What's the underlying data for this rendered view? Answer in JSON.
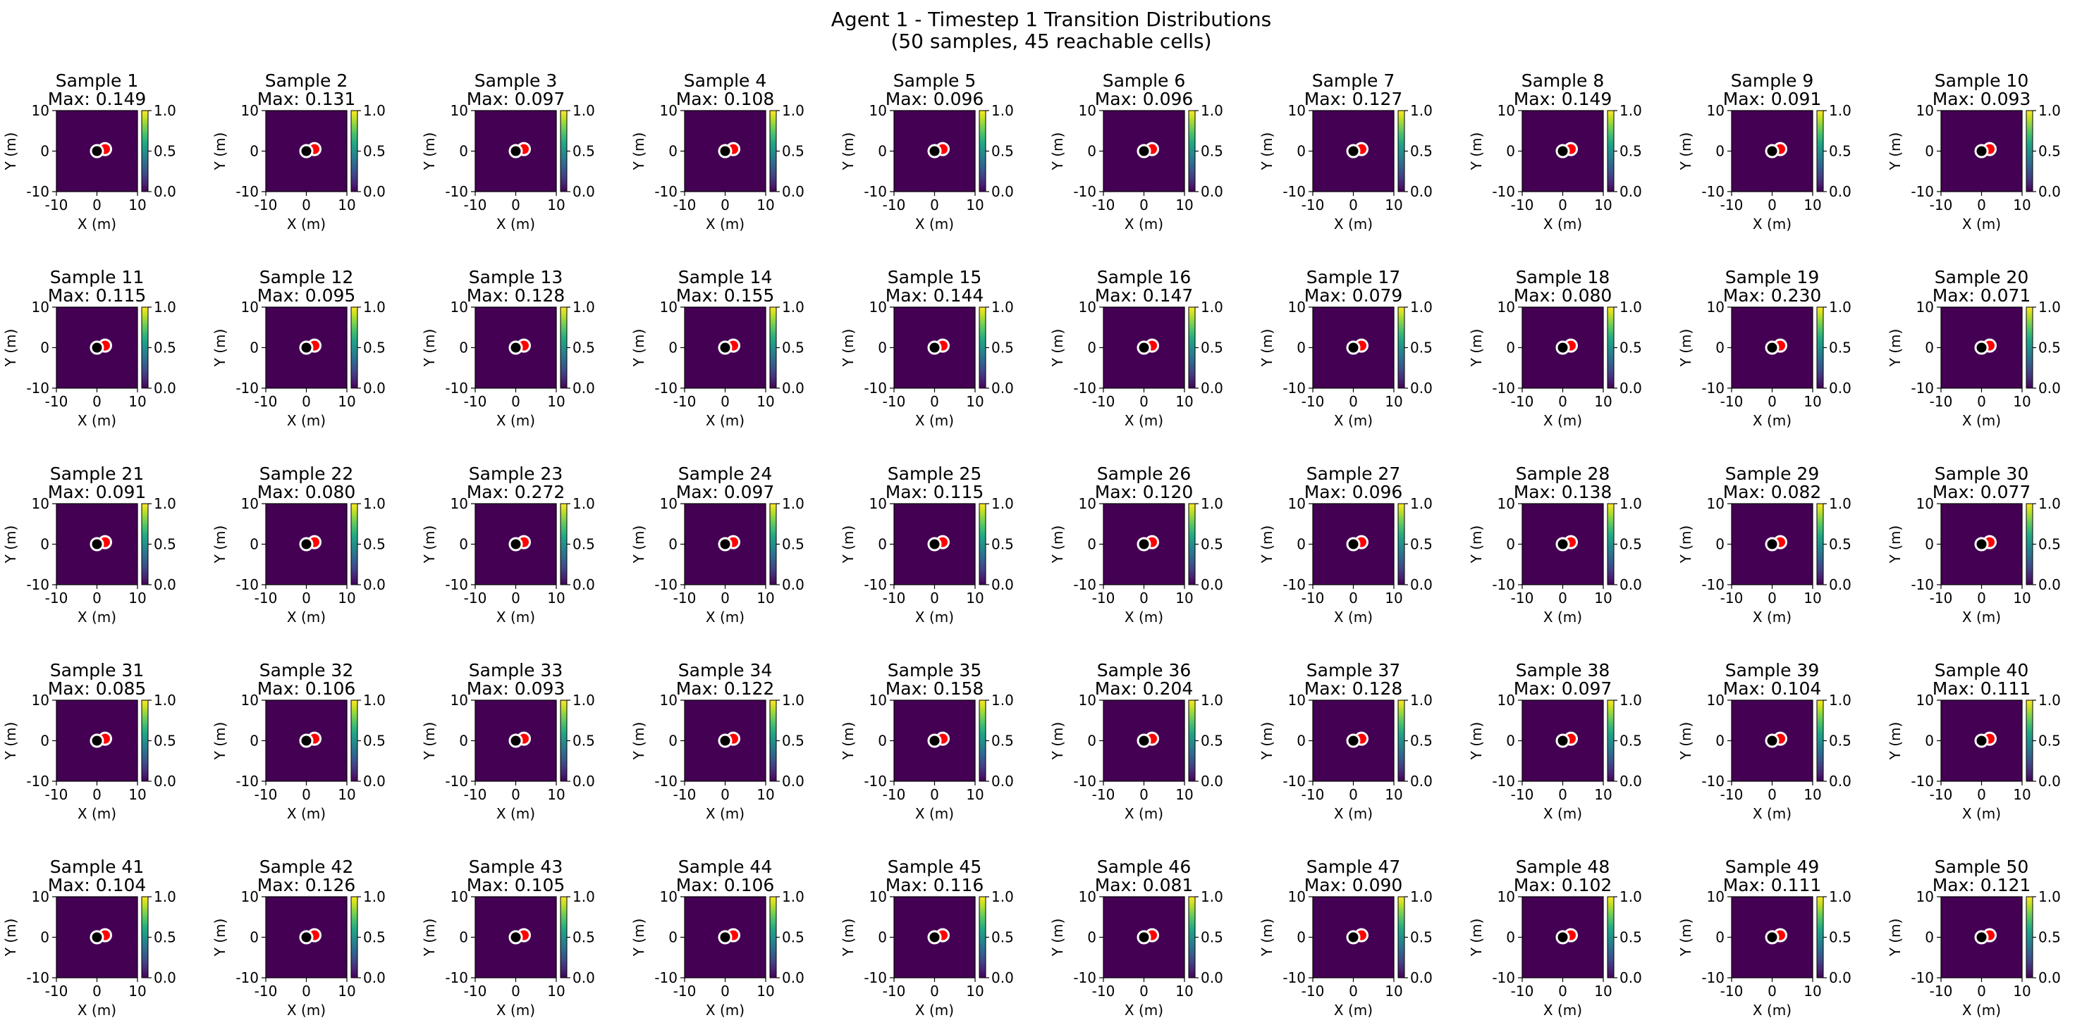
{
  "figure": {
    "title_line1": "Agent 1 - Timestep 1 Transition Distributions",
    "title_line2": "(50 samples, 45 reachable cells)"
  },
  "colors": {
    "background_cell": "#440154",
    "viridis": [
      "#440154",
      "#482475",
      "#414487",
      "#355f8d",
      "#2a788e",
      "#21918c",
      "#22a884",
      "#44bf70",
      "#7ad151",
      "#bddf26",
      "#fde725"
    ],
    "current_marker_fill": "#000000",
    "current_marker_edge": "#ffffff",
    "next_marker_fill": "#ff0000",
    "next_marker_edge": "#ffffff"
  },
  "chart_data": {
    "type": "heatmap",
    "grid": "5x10 small multiples",
    "xlabel": "X (m)",
    "ylabel": "Y (m)",
    "xlim": [
      -10,
      10
    ],
    "ylim": [
      -10,
      10
    ],
    "xticks": [
      "-10",
      "0",
      "10"
    ],
    "yticks": [
      "-10",
      "0",
      "10"
    ],
    "colorbar": {
      "range": [
        0,
        1
      ],
      "ticks": [
        "0.0",
        "0.5",
        "1.0"
      ]
    },
    "current_position": [
      0,
      0
    ],
    "next_position": [
      2,
      0.5
    ],
    "panels": [
      {
        "title": "Sample 1",
        "max_label": "Max: 0.149"
      },
      {
        "title": "Sample 2",
        "max_label": "Max: 0.131"
      },
      {
        "title": "Sample 3",
        "max_label": "Max: 0.097"
      },
      {
        "title": "Sample 4",
        "max_label": "Max: 0.108"
      },
      {
        "title": "Sample 5",
        "max_label": "Max: 0.096"
      },
      {
        "title": "Sample 6",
        "max_label": "Max: 0.096"
      },
      {
        "title": "Sample 7",
        "max_label": "Max: 0.127"
      },
      {
        "title": "Sample 8",
        "max_label": "Max: 0.149"
      },
      {
        "title": "Sample 9",
        "max_label": "Max: 0.091"
      },
      {
        "title": "Sample 10",
        "max_label": "Max: 0.093"
      },
      {
        "title": "Sample 11",
        "max_label": "Max: 0.115"
      },
      {
        "title": "Sample 12",
        "max_label": "Max: 0.095"
      },
      {
        "title": "Sample 13",
        "max_label": "Max: 0.128"
      },
      {
        "title": "Sample 14",
        "max_label": "Max: 0.155"
      },
      {
        "title": "Sample 15",
        "max_label": "Max: 0.144"
      },
      {
        "title": "Sample 16",
        "max_label": "Max: 0.147"
      },
      {
        "title": "Sample 17",
        "max_label": "Max: 0.079"
      },
      {
        "title": "Sample 18",
        "max_label": "Max: 0.080"
      },
      {
        "title": "Sample 19",
        "max_label": "Max: 0.230"
      },
      {
        "title": "Sample 20",
        "max_label": "Max: 0.071"
      },
      {
        "title": "Sample 21",
        "max_label": "Max: 0.091"
      },
      {
        "title": "Sample 22",
        "max_label": "Max: 0.080"
      },
      {
        "title": "Sample 23",
        "max_label": "Max: 0.272"
      },
      {
        "title": "Sample 24",
        "max_label": "Max: 0.097"
      },
      {
        "title": "Sample 25",
        "max_label": "Max: 0.115"
      },
      {
        "title": "Sample 26",
        "max_label": "Max: 0.120"
      },
      {
        "title": "Sample 27",
        "max_label": "Max: 0.096"
      },
      {
        "title": "Sample 28",
        "max_label": "Max: 0.138"
      },
      {
        "title": "Sample 29",
        "max_label": "Max: 0.082"
      },
      {
        "title": "Sample 30",
        "max_label": "Max: 0.077"
      },
      {
        "title": "Sample 31",
        "max_label": "Max: 0.085"
      },
      {
        "title": "Sample 32",
        "max_label": "Max: 0.106"
      },
      {
        "title": "Sample 33",
        "max_label": "Max: 0.093"
      },
      {
        "title": "Sample 34",
        "max_label": "Max: 0.122"
      },
      {
        "title": "Sample 35",
        "max_label": "Max: 0.158"
      },
      {
        "title": "Sample 36",
        "max_label": "Max: 0.204"
      },
      {
        "title": "Sample 37",
        "max_label": "Max: 0.128"
      },
      {
        "title": "Sample 38",
        "max_label": "Max: 0.097"
      },
      {
        "title": "Sample 39",
        "max_label": "Max: 0.104"
      },
      {
        "title": "Sample 40",
        "max_label": "Max: 0.111"
      },
      {
        "title": "Sample 41",
        "max_label": "Max: 0.104"
      },
      {
        "title": "Sample 42",
        "max_label": "Max: 0.126"
      },
      {
        "title": "Sample 43",
        "max_label": "Max: 0.105"
      },
      {
        "title": "Sample 44",
        "max_label": "Max: 0.106"
      },
      {
        "title": "Sample 45",
        "max_label": "Max: 0.116"
      },
      {
        "title": "Sample 46",
        "max_label": "Max: 0.081"
      },
      {
        "title": "Sample 47",
        "max_label": "Max: 0.090"
      },
      {
        "title": "Sample 48",
        "max_label": "Max: 0.102"
      },
      {
        "title": "Sample 49",
        "max_label": "Max: 0.111"
      },
      {
        "title": "Sample 50",
        "max_label": "Max: 0.121"
      }
    ]
  }
}
